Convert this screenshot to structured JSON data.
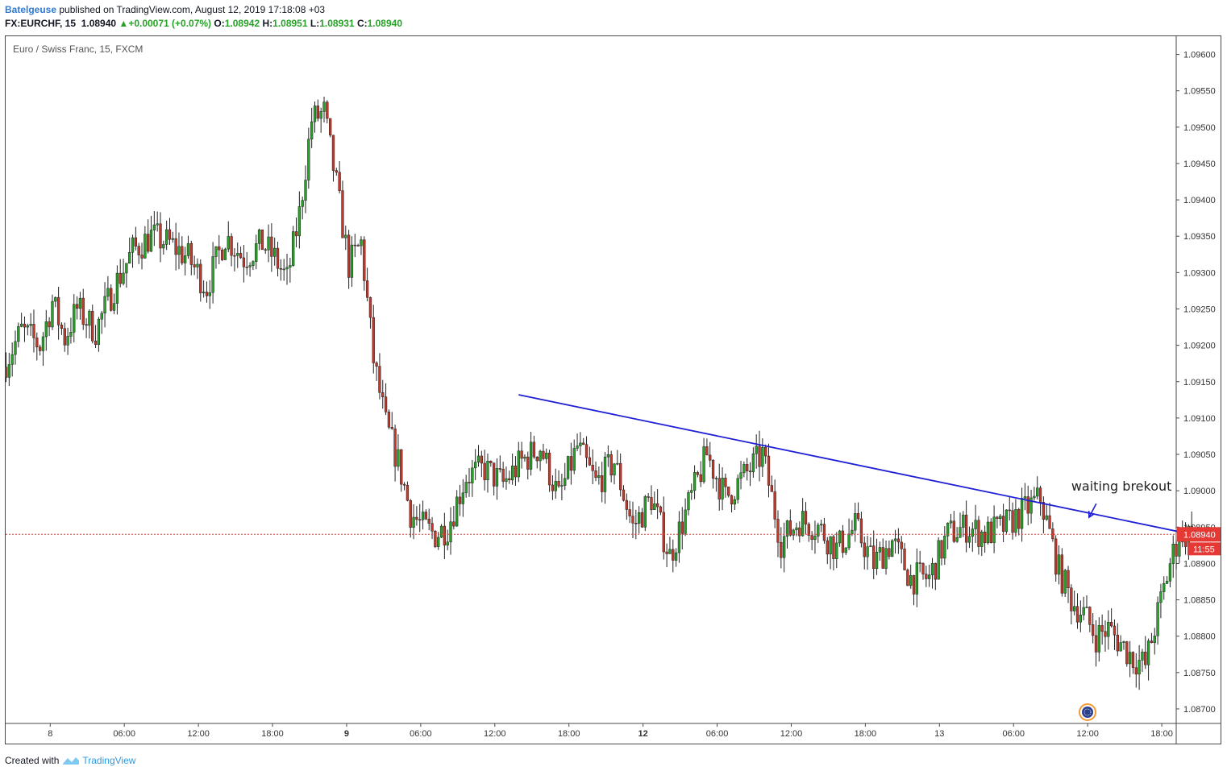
{
  "header": {
    "author": "Batelgeuse",
    "published_text": "published on TradingView.com, August 12, 2019 17:18:08 +03",
    "symbol": "FX:EURCHF, 15",
    "last": "1.08940",
    "change": "+0.00071 (+0.07%)",
    "open_label": "O:",
    "open": "1.08942",
    "high_label": "H:",
    "high": "1.08951",
    "low_label": "L:",
    "low": "1.08931",
    "close_label": "C:",
    "close": "1.08940"
  },
  "footer": {
    "created_with": "Created with",
    "brand": "TradingView"
  },
  "colors": {
    "up": "#26a226",
    "down": "#c0392b",
    "trendline": "#1f1fd6",
    "price_line": "#e53935",
    "price_badge": "#e53935"
  },
  "chart_data": {
    "type": "candlestick",
    "title": "Euro / Swiss Franc, 15, FXCM",
    "y_ticks": [
      "1.09600",
      "1.09550",
      "1.09500",
      "1.09450",
      "1.09400",
      "1.09350",
      "1.09300",
      "1.09250",
      "1.09200",
      "1.09150",
      "1.09100",
      "1.09050",
      "1.09000",
      "1.08950",
      "1.08900",
      "1.08850",
      "1.08800",
      "1.08750",
      "1.08700"
    ],
    "ylim": [
      1.0868,
      1.09625
    ],
    "x_ticks": [
      "8",
      "06:00",
      "12:00",
      "18:00",
      "9",
      "06:00",
      "12:00",
      "18:00",
      "12",
      "06:00",
      "12:00",
      "18:00",
      "13",
      "06:00",
      "12:00",
      "18:00"
    ],
    "x_tick_bold": [
      false,
      false,
      false,
      false,
      true,
      false,
      false,
      false,
      true,
      false,
      false,
      false,
      false,
      false,
      false,
      false
    ],
    "bars_per_tick": 24,
    "last_price": 1.0894,
    "last_price_label": "1.08940",
    "countdown": "11:55",
    "price_path": [
      [
        0,
        1.0917
      ],
      [
        6,
        1.0922
      ],
      [
        12,
        1.092
      ],
      [
        16,
        1.0926
      ],
      [
        20,
        1.0921
      ],
      [
        24,
        1.0925
      ],
      [
        30,
        1.0922
      ],
      [
        36,
        1.0928
      ],
      [
        42,
        1.0933
      ],
      [
        48,
        1.0935
      ],
      [
        54,
        1.0934
      ],
      [
        60,
        1.0932
      ],
      [
        66,
        1.0928
      ],
      [
        72,
        1.0935
      ],
      [
        78,
        1.0932
      ],
      [
        84,
        1.0934
      ],
      [
        88,
        1.0932
      ],
      [
        92,
        1.0929
      ],
      [
        96,
        1.0938
      ],
      [
        100,
        1.0951
      ],
      [
        104,
        1.0952
      ],
      [
        108,
        1.0942
      ],
      [
        112,
        1.0931
      ],
      [
        116,
        1.0934
      ],
      [
        120,
        1.0918
      ],
      [
        124,
        1.0909
      ],
      [
        128,
        1.0904
      ],
      [
        132,
        1.0897
      ],
      [
        136,
        1.0895
      ],
      [
        140,
        1.0894
      ],
      [
        144,
        1.0895
      ],
      [
        150,
        1.0902
      ],
      [
        156,
        1.0903
      ],
      [
        162,
        1.0901
      ],
      [
        168,
        1.0904
      ],
      [
        174,
        1.0906
      ],
      [
        180,
        1.0899
      ],
      [
        186,
        1.0906
      ],
      [
        192,
        1.0901
      ],
      [
        198,
        1.0904
      ],
      [
        204,
        1.0895
      ],
      [
        210,
        1.0899
      ],
      [
        216,
        1.0891
      ],
      [
        222,
        1.0898
      ],
      [
        228,
        1.0905
      ],
      [
        234,
        1.0899
      ],
      [
        240,
        1.0902
      ],
      [
        246,
        1.0905
      ],
      [
        252,
        1.0893
      ],
      [
        258,
        1.0896
      ],
      [
        264,
        1.0895
      ],
      [
        270,
        1.0892
      ],
      [
        276,
        1.0895
      ],
      [
        282,
        1.089
      ],
      [
        288,
        1.0893
      ],
      [
        294,
        1.0888
      ],
      [
        300,
        1.0888
      ],
      [
        306,
        1.0894
      ],
      [
        312,
        1.0895
      ],
      [
        318,
        1.0894
      ],
      [
        324,
        1.0895
      ],
      [
        330,
        1.0897
      ],
      [
        336,
        1.0899
      ],
      [
        342,
        1.0889
      ],
      [
        346,
        1.0885
      ],
      [
        350,
        1.0883
      ],
      [
        354,
        1.088
      ],
      [
        358,
        1.0881
      ],
      [
        362,
        1.0879
      ],
      [
        366,
        1.0877
      ],
      [
        370,
        1.0876
      ],
      [
        374,
        1.0883
      ],
      [
        378,
        1.089
      ],
      [
        381,
        1.0894
      ],
      [
        384,
        1.0894
      ]
    ],
    "trendline": {
      "start": [
        166,
        1.09132
      ],
      "end": [
        442,
        1.08889
      ]
    },
    "annotation": {
      "text": "waiting brekout",
      "bar": 345,
      "price": 1.09
    }
  }
}
